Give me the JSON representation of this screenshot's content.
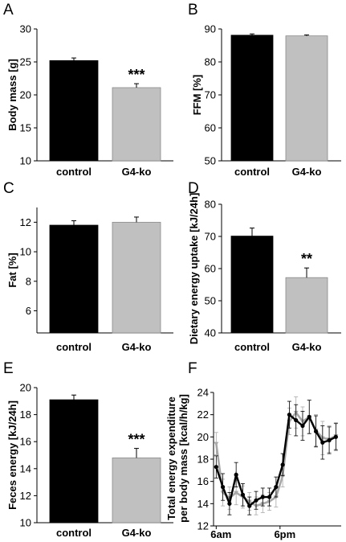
{
  "colors": {
    "control": "#000000",
    "ko": "#c0c0c0",
    "ko_line": "#a8a8a8"
  },
  "chart_data": [
    {
      "panel": "A",
      "type": "bar",
      "categories": [
        "control",
        "G4-ko"
      ],
      "values": [
        25.2,
        21.1
      ],
      "errors": [
        0.4,
        0.6
      ],
      "significance": [
        "",
        "***"
      ],
      "ylabel": "Body mass [g]",
      "ylim": [
        10,
        30
      ],
      "yticks": [
        "10",
        "15",
        "20",
        "25",
        "30"
      ]
    },
    {
      "panel": "B",
      "type": "bar",
      "categories": [
        "control",
        "G4-ko"
      ],
      "values": [
        88.1,
        87.9
      ],
      "errors": [
        0.4,
        0.3
      ],
      "significance": [
        "",
        ""
      ],
      "ylabel": "FFM [%]",
      "ylim": [
        50,
        90
      ],
      "yticks": [
        "50",
        "60",
        "70",
        "80",
        "90"
      ]
    },
    {
      "panel": "C",
      "type": "bar",
      "categories": [
        "control",
        "G4-ko"
      ],
      "values": [
        11.8,
        12.0
      ],
      "errors": [
        0.3,
        0.35
      ],
      "significance": [
        "",
        ""
      ],
      "ylabel": "Fat [%]",
      "ylim": [
        4.5,
        13
      ],
      "yticks": [
        "6",
        "8",
        "10",
        "12"
      ]
    },
    {
      "panel": "D",
      "type": "bar",
      "categories": [
        "control",
        "G4-ko"
      ],
      "values": [
        70.1,
        57.2
      ],
      "errors": [
        2.5,
        3.0
      ],
      "significance": [
        "",
        "**"
      ],
      "ylabel": "Dietary energy uptake [kJ/24h]",
      "ylim": [
        40,
        80
      ],
      "yticks": [
        "40",
        "50",
        "60",
        "70",
        "80"
      ]
    },
    {
      "panel": "E",
      "type": "bar",
      "categories": [
        "control",
        "G4-ko"
      ],
      "values": [
        19.1,
        14.8
      ],
      "errors": [
        0.35,
        0.7
      ],
      "significance": [
        "",
        "***"
      ],
      "ylabel": "Feces energy [kJ/24h]",
      "ylim": [
        10,
        20
      ],
      "yticks": [
        "10",
        "12",
        "14",
        "16",
        "18",
        "20"
      ]
    },
    {
      "panel": "F",
      "type": "line",
      "ylabel_lines": [
        "Total energy expenditure",
        "per body mass [kcal/h/kg]"
      ],
      "ylim": [
        12,
        24
      ],
      "yticks": [
        "12",
        "14",
        "16",
        "18",
        "20",
        "22",
        "24"
      ],
      "xticks": [
        {
          "label": "6am",
          "x": 0.5
        },
        {
          "label": "6pm",
          "x": 12.5
        }
      ],
      "xlim": [
        0,
        24
      ],
      "series": [
        {
          "key": "control",
          "values": [
            17.3,
            15.5,
            14.0,
            16.6,
            14.8,
            13.8,
            14.3,
            14.6,
            14.6,
            15.5,
            17.5,
            22.0,
            21.5,
            21.0,
            21.8,
            20.5,
            19.5,
            19.7,
            20.0
          ],
          "errors": [
            1.0,
            1.2,
            1.0,
            1.1,
            1.0,
            0.8,
            0.8,
            0.8,
            0.8,
            0.9,
            1.0,
            1.2,
            1.4,
            1.3,
            1.5,
            1.4,
            1.5,
            1.2,
            1.2
          ]
        },
        {
          "key": "ko",
          "values": [
            19.4,
            15.0,
            14.5,
            15.0,
            14.6,
            14.2,
            13.8,
            14.0,
            14.2,
            14.6,
            16.5,
            21.4,
            22.2,
            21.4,
            21.8,
            20.6,
            19.9,
            19.8,
            20.1
          ],
          "errors": [
            1.0,
            1.2,
            1.0,
            1.1,
            1.0,
            0.8,
            0.8,
            0.8,
            0.8,
            0.9,
            1.0,
            1.2,
            1.4,
            1.3,
            1.5,
            1.4,
            1.5,
            1.2,
            1.2
          ]
        }
      ]
    }
  ]
}
